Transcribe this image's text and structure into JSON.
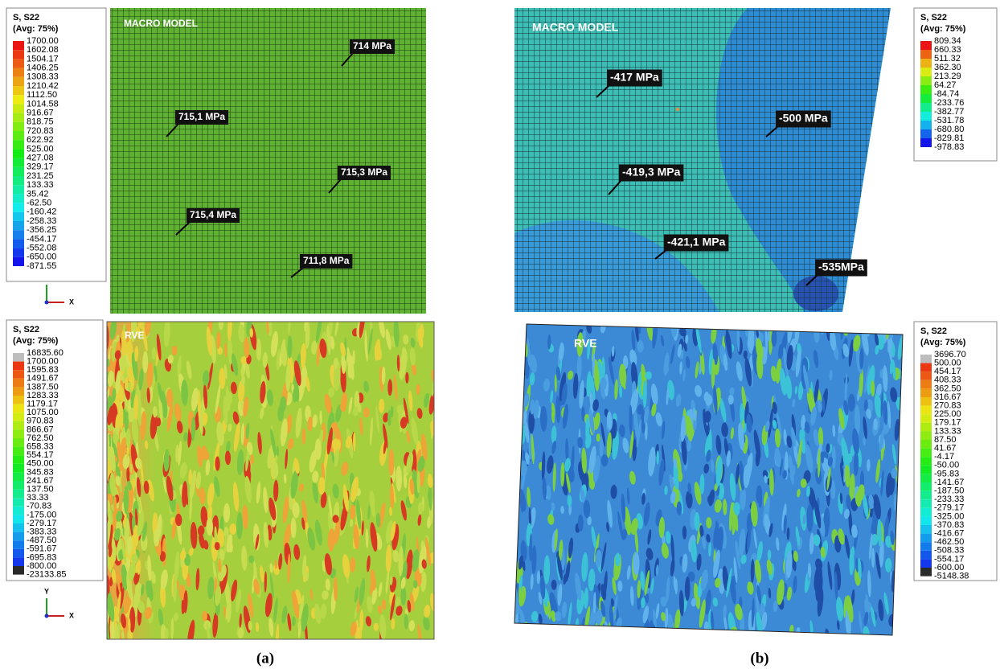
{
  "panel_a": {
    "caption": "(a)",
    "macro": {
      "label": "MACRO MODEL",
      "legend": {
        "title": "S, S22",
        "subtitle": "(Avg: 75%)",
        "values": [
          "1700.00",
          "1602.08",
          "1504.17",
          "1406.25",
          "1308.33",
          "1210.42",
          "1112.50",
          "1014.58",
          "916.67",
          "818.75",
          "720.83",
          "622.92",
          "525.00",
          "427.08",
          "329.17",
          "231.25",
          "133.33",
          "35.42",
          "-62.50",
          "-160.42",
          "-258.33",
          "-356.25",
          "-454.17",
          "-552.08",
          "-650.00",
          "-871.55"
        ]
      },
      "annotations": [
        "714 MPa",
        "715,1 MPa",
        "715,3 MPa",
        "715,4 MPa",
        "711,8 MPa"
      ],
      "axes": [
        "X"
      ]
    },
    "rve": {
      "label": "RVE",
      "legend": {
        "title": "S, S22",
        "subtitle": "(Avg: 75%)",
        "values": [
          "16835.60",
          "1700.00",
          "1595.83",
          "1491.67",
          "1387.50",
          "1283.33",
          "1179.17",
          "1075.00",
          "970.83",
          "866.67",
          "762.50",
          "658.33",
          "554.17",
          "450.00",
          "345.83",
          "241.67",
          "137.50",
          "33.33",
          "-70.83",
          "-175.00",
          "-279.17",
          "-383.33",
          "-487.50",
          "-591.67",
          "-695.83",
          "-800.00",
          "-23133.85"
        ]
      },
      "axes": [
        "Y",
        "X"
      ]
    }
  },
  "panel_b": {
    "caption": "(b)",
    "macro": {
      "label": "MACRO MODEL",
      "legend": {
        "title": "S, S22",
        "subtitle": "(Avg: 75%)",
        "values": [
          "809.34",
          "660.33",
          "511.32",
          "362.30",
          "213.29",
          "64.27",
          "-84.74",
          "-233.76",
          "-382.77",
          "-531.78",
          "-680.80",
          "-829.81",
          "-978.83"
        ]
      },
      "annotations": [
        "-417 MPa",
        "-500 MPa",
        "-419,3 MPa",
        "-421,1 MPa",
        "-535MPa"
      ]
    },
    "rve": {
      "label": "RVE",
      "legend": {
        "title": "S, S22",
        "subtitle": "(Avg: 75%)",
        "values": [
          "3696.70",
          "500.00",
          "454.17",
          "408.33",
          "362.50",
          "316.67",
          "270.83",
          "225.00",
          "179.17",
          "133.33",
          "87.50",
          "41.67",
          "-4.17",
          "-50.00",
          "-95.83",
          "-141.67",
          "-187.50",
          "-233.33",
          "-279.17",
          "-325.00",
          "-370.83",
          "-416.67",
          "-462.50",
          "-508.33",
          "-554.17",
          "-600.00",
          "-5148.38"
        ]
      }
    }
  }
}
